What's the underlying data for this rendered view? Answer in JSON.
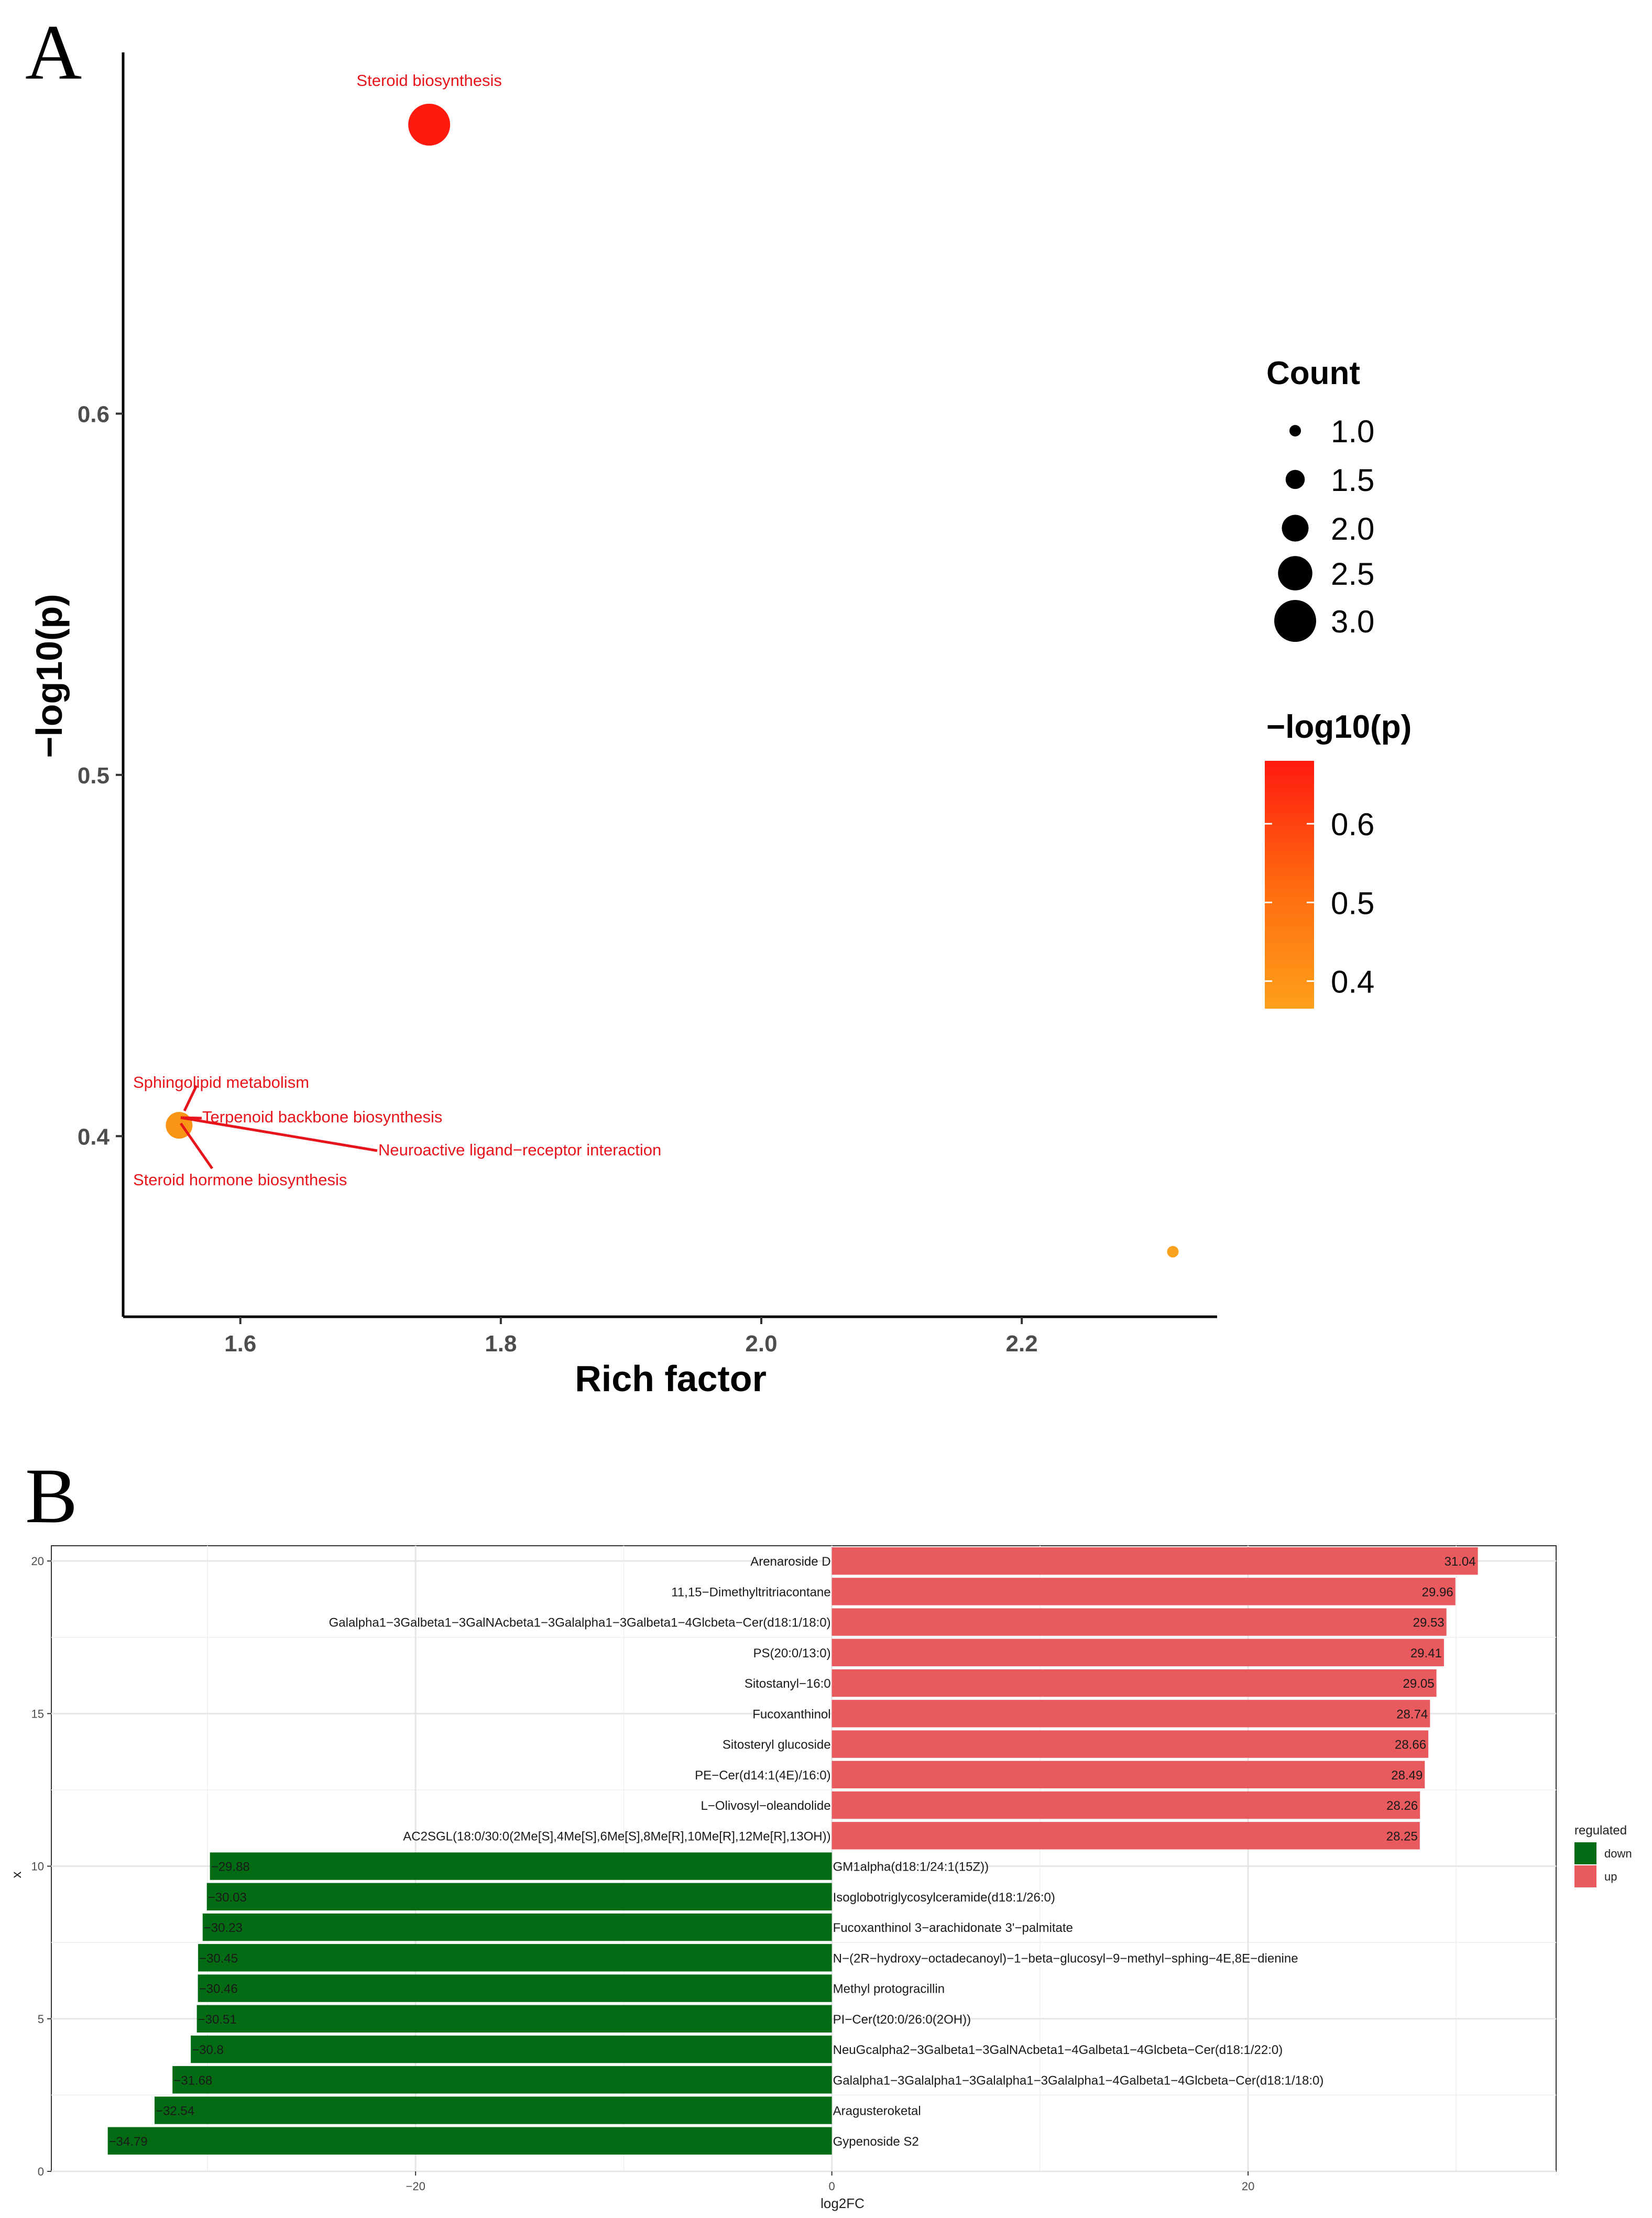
{
  "panelA": {
    "panel_label": "A",
    "legend_count_title": "Count",
    "legend_color_title": "−log10(p)",
    "chart_data": {
      "type": "scatter",
      "xlabel": "Rich factor",
      "ylabel": "−log10(p)",
      "xlim": [
        1.51,
        2.35
      ],
      "ylim": [
        0.35,
        0.7
      ],
      "x_ticks": [
        1.6,
        1.8,
        2.0,
        2.2
      ],
      "x_tick_labels": [
        "1.6",
        "1.8",
        "2.0",
        "2.2"
      ],
      "y_ticks": [
        0.4,
        0.5,
        0.6
      ],
      "y_tick_labels": [
        "0.4",
        "0.5",
        "0.6"
      ],
      "size_legend": {
        "values": [
          1.0,
          1.5,
          2.0,
          2.5,
          3.0
        ],
        "labels": [
          "1.0",
          "1.5",
          "2.0",
          "2.5",
          "3.0"
        ]
      },
      "color_legend": {
        "min": 0.365,
        "max": 0.68,
        "ticks": [
          0.4,
          0.5,
          0.6
        ],
        "labels": [
          "0.4",
          "0.5",
          "0.6"
        ],
        "low_color": "#FFA01A",
        "high_color": "#FF1A0F"
      },
      "points": [
        {
          "x": 1.745,
          "y": 0.68,
          "count": 3,
          "color": "#FF1A0F"
        },
        {
          "x": 1.553,
          "y": 0.403,
          "count": 2,
          "color": "#F99414"
        },
        {
          "x": 2.316,
          "y": 0.368,
          "count": 1,
          "color": "#F9A21E"
        }
      ],
      "annotations": [
        {
          "text": "Steroid biosynthesis",
          "color": "#E8141B"
        },
        {
          "text": "Sphingolipid metabolism",
          "color": "#E8141B"
        },
        {
          "text": "Terpenoid backbone biosynthesis",
          "color": "#E8141B"
        },
        {
          "text": "Neuroactive ligand−receptor interaction",
          "color": "#E8141B"
        },
        {
          "text": "Steroid hormone biosynthesis",
          "color": "#E8141B"
        }
      ]
    }
  },
  "panelB": {
    "panel_label": "B",
    "legend_title": "regulated",
    "legend_items": [
      {
        "label": "down",
        "color": "#036B13"
      },
      {
        "label": "up",
        "color": "#E85A5E"
      }
    ],
    "chart_data": {
      "type": "bar",
      "orientation": "horizontal",
      "xlabel": "log2FC",
      "ylabel": "x",
      "xlim": [
        -37.5,
        34.8
      ],
      "ylim": [
        0,
        20.5
      ],
      "x_ticks": [
        -20,
        0,
        20
      ],
      "x_tick_labels": [
        "−20",
        "0",
        "20"
      ],
      "y_ticks": [
        0,
        5,
        10,
        15,
        20
      ],
      "y_tick_labels": [
        "0",
        "5",
        "10",
        "15",
        "20"
      ],
      "series": [
        {
          "name": "up",
          "color": "#E85A5E"
        },
        {
          "name": "down",
          "color": "#036B13"
        }
      ],
      "bars": [
        {
          "pos": 20,
          "label": "Arenaroside D",
          "value": 31.04,
          "value_label": "31.04",
          "regulated": "up"
        },
        {
          "pos": 19,
          "label": "11,15−Dimethyltritriacontane",
          "value": 29.96,
          "value_label": "29.96",
          "regulated": "up"
        },
        {
          "pos": 18,
          "label": "Galalpha1−3Galbeta1−3GalNAcbeta1−3Galalpha1−3Galbeta1−4Glcbeta−Cer(d18:1/18:0)",
          "value": 29.53,
          "value_label": "29.53",
          "regulated": "up"
        },
        {
          "pos": 17,
          "label": "PS(20:0/13:0)",
          "value": 29.41,
          "value_label": "29.41",
          "regulated": "up"
        },
        {
          "pos": 16,
          "label": "Sitostanyl−16:0",
          "value": 29.05,
          "value_label": "29.05",
          "regulated": "up"
        },
        {
          "pos": 15,
          "label": "Fucoxanthinol",
          "value": 28.74,
          "value_label": "28.74",
          "regulated": "up"
        },
        {
          "pos": 14,
          "label": "Sitosteryl glucoside",
          "value": 28.66,
          "value_label": "28.66",
          "regulated": "up"
        },
        {
          "pos": 13,
          "label": "PE−Cer(d14:1(4E)/16:0)",
          "value": 28.49,
          "value_label": "28.49",
          "regulated": "up"
        },
        {
          "pos": 12,
          "label": "L−Olivosyl−oleandolide",
          "value": 28.26,
          "value_label": "28.26",
          "regulated": "up"
        },
        {
          "pos": 11,
          "label": "AC2SGL(18:0/30:0(2Me[S],4Me[S],6Me[S],8Me[R],10Me[R],12Me[R],13OH))",
          "value": 28.25,
          "value_label": "28.25",
          "regulated": "up"
        },
        {
          "pos": 10,
          "label": "GM1alpha(d18:1/24:1(15Z))",
          "value": -29.88,
          "value_label": "−29.88",
          "regulated": "down"
        },
        {
          "pos": 9,
          "label": "Isoglobotriglycosylceramide(d18:1/26:0)",
          "value": -30.03,
          "value_label": "−30.03",
          "regulated": "down"
        },
        {
          "pos": 8,
          "label": "Fucoxanthinol 3−arachidonate 3'−palmitate",
          "value": -30.23,
          "value_label": "−30.23",
          "regulated": "down"
        },
        {
          "pos": 7,
          "label": "N−(2R−hydroxy−octadecanoyl)−1−beta−glucosyl−9−methyl−sphing−4E,8E−dienine",
          "value": -30.45,
          "value_label": "−30.45",
          "regulated": "down"
        },
        {
          "pos": 6,
          "label": "Methyl protogracillin",
          "value": -30.46,
          "value_label": "−30.46",
          "regulated": "down"
        },
        {
          "pos": 5,
          "label": "PI−Cer(t20:0/26:0(2OH))",
          "value": -30.51,
          "value_label": "−30.51",
          "regulated": "down"
        },
        {
          "pos": 4,
          "label": "NeuGcalpha2−3Galbeta1−3GalNAcbeta1−4Galbeta1−4Glcbeta−Cer(d18:1/22:0)",
          "value": -30.8,
          "value_label": "−30.8",
          "regulated": "down"
        },
        {
          "pos": 3,
          "label": "Galalpha1−3Galalpha1−3Galalpha1−3Galalpha1−4Galbeta1−4Glcbeta−Cer(d18:1/18:0)",
          "value": -31.68,
          "value_label": "−31.68",
          "regulated": "down"
        },
        {
          "pos": 2,
          "label": "Aragusteroketal",
          "value": -32.54,
          "value_label": "−32.54",
          "regulated": "down"
        },
        {
          "pos": 1,
          "label": "Gypenoside S2",
          "value": -34.79,
          "value_label": "−34.79",
          "regulated": "down"
        }
      ]
    }
  }
}
